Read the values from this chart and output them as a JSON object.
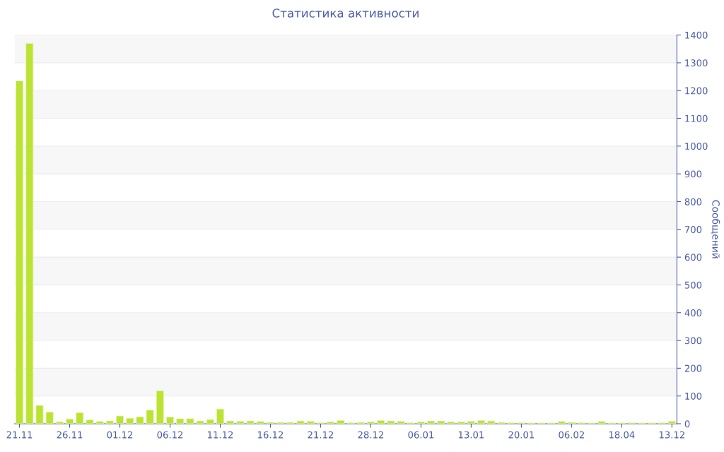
{
  "chart_data": {
    "type": "bar",
    "title": "Статистика активности",
    "ylabel": "Сообщений",
    "categories": [
      "21.11",
      null,
      null,
      null,
      null,
      "26.11",
      null,
      null,
      null,
      null,
      "01.12",
      null,
      null,
      null,
      null,
      "06.12",
      null,
      null,
      null,
      null,
      "11.12",
      null,
      null,
      null,
      null,
      "16.12",
      null,
      null,
      null,
      null,
      "21.12",
      null,
      null,
      null,
      null,
      "28.12",
      null,
      null,
      null,
      null,
      "06.01",
      null,
      null,
      null,
      null,
      "13.01",
      null,
      null,
      null,
      null,
      "20.01",
      null,
      null,
      null,
      null,
      "06.02",
      null,
      null,
      null,
      null,
      "18.04",
      null,
      null,
      null,
      null,
      "13.12"
    ],
    "values": [
      1235,
      1370,
      66,
      42,
      7,
      17,
      40,
      14,
      8,
      10,
      28,
      20,
      25,
      49,
      119,
      24,
      18,
      18,
      10,
      15,
      53,
      10,
      9,
      10,
      8,
      5,
      5,
      5,
      10,
      9,
      4,
      7,
      12,
      4,
      5,
      7,
      12,
      10,
      9,
      4,
      7,
      10,
      10,
      7,
      7,
      9,
      12,
      10,
      5,
      4,
      4,
      3,
      3,
      3,
      8,
      5,
      4,
      3,
      8,
      3,
      3,
      4,
      3,
      3,
      4,
      9
    ],
    "color": "#bce234",
    "ylim": [
      0,
      1400
    ],
    "yticks": [
      0,
      100,
      200,
      300,
      400,
      500,
      600,
      700,
      800,
      900,
      1000,
      1100,
      1200,
      1300,
      1400
    ],
    "grid": "y"
  }
}
